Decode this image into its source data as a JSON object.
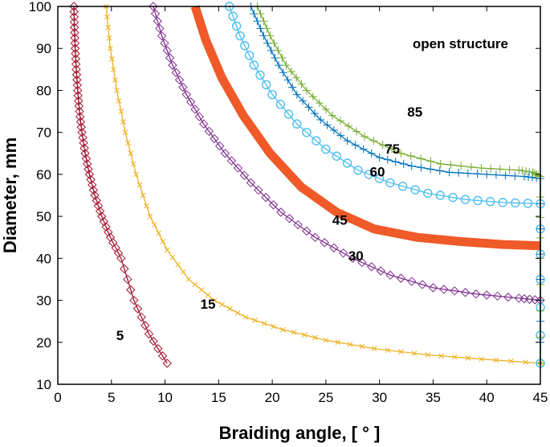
{
  "chart_data": {
    "type": "line",
    "title": "",
    "xlabel": "Braiding angle, [ ° ]",
    "ylabel": "Diameter, mm",
    "xlim": [
      0,
      45
    ],
    "ylim": [
      10,
      100
    ],
    "xticks": [
      0,
      5,
      10,
      15,
      20,
      25,
      30,
      35,
      40,
      45
    ],
    "yticks": [
      10,
      20,
      30,
      40,
      50,
      60,
      70,
      80,
      90,
      100
    ],
    "grid": false,
    "annotations": [
      {
        "text": "open structure",
        "x": 42,
        "y": 90
      },
      {
        "text": "5",
        "x": 5.8,
        "y": 20.5
      },
      {
        "text": "15",
        "x": 14,
        "y": 28
      },
      {
        "text": "30",
        "x": 27.8,
        "y": 39.5
      },
      {
        "text": "45",
        "x": 26.3,
        "y": 48
      },
      {
        "text": "60",
        "x": 29.8,
        "y": 59.5
      },
      {
        "text": "75",
        "x": 31.2,
        "y": 65
      },
      {
        "text": "85",
        "x": 33.3,
        "y": 73.8
      }
    ],
    "series": [
      {
        "color": "#a2142f",
        "marker": "diamond",
        "x": [
          1.5,
          1.55,
          1.62,
          1.72,
          1.85,
          2.02,
          2.25,
          2.55,
          2.95,
          3.45,
          4.1,
          4.9,
          5.9,
          7.1,
          8.5,
          10.2
        ],
        "y": [
          100,
          95,
          90,
          85,
          80,
          75,
          70,
          65,
          60,
          55,
          50,
          45,
          40,
          30,
          22,
          15
        ]
      },
      {
        "color": "#edb120",
        "marker": "x",
        "x": [
          4.5,
          4.9,
          5.5,
          6.3,
          7.3,
          8.6,
          10.2,
          12.2,
          14.6,
          17.5,
          21,
          25,
          29.5,
          34.5,
          39.5,
          45
        ],
        "y": [
          100,
          90,
          80,
          70,
          60,
          50,
          42,
          35,
          30,
          26,
          23,
          20.5,
          18.5,
          17,
          16,
          15
        ]
      },
      {
        "color": "#7e2f8e",
        "marker": "diamond",
        "x": [
          8.9,
          9.7,
          10.7,
          12,
          13.6,
          15.6,
          18,
          20.8,
          24,
          27.5,
          31,
          35,
          39,
          43,
          45
        ],
        "y": [
          100,
          93,
          86,
          79,
          72,
          65,
          58,
          51,
          45,
          40,
          36,
          33,
          31.5,
          30.5,
          30
        ]
      },
      {
        "color": "#f05a28",
        "marker": "none",
        "thick": true,
        "x": [
          12.8,
          13.8,
          15.3,
          17.3,
          19.8,
          22.7,
          26,
          29.5,
          33.5,
          37.5,
          41.5,
          45
        ],
        "y": [
          100,
          92,
          83,
          74,
          65,
          57,
          51,
          47,
          45,
          44,
          43.3,
          43
        ]
      },
      {
        "color": "#4dbeee",
        "marker": "circle",
        "x": [
          16,
          17,
          18.3,
          20,
          22.3,
          25,
          28,
          31,
          34.5,
          38,
          41.5,
          45,
          45,
          45
        ],
        "y": [
          100,
          93,
          86,
          79,
          72,
          66,
          61,
          58,
          55.5,
          54,
          53.3,
          53,
          35,
          15
        ]
      },
      {
        "color": "#0072bd",
        "marker": "plus",
        "x": [
          18,
          19.2,
          20.6,
          22.3,
          24.5,
          27,
          30,
          33,
          36.5,
          40,
          43.5,
          45,
          45,
          45
        ],
        "y": [
          100,
          93,
          86,
          79,
          73,
          68,
          64,
          62,
          60.5,
          60,
          59.5,
          59,
          35,
          15
        ]
      },
      {
        "color": "#77ac30",
        "marker": "plus",
        "x": [
          18.6,
          19.8,
          21.3,
          23.2,
          25.6,
          28.6,
          32,
          35.7,
          39.5,
          43,
          44.3,
          45,
          45,
          45
        ],
        "y": [
          100,
          93,
          86,
          80,
          74,
          69,
          65,
          62.5,
          61.5,
          61,
          60.5,
          59.5,
          40,
          15
        ]
      }
    ]
  }
}
